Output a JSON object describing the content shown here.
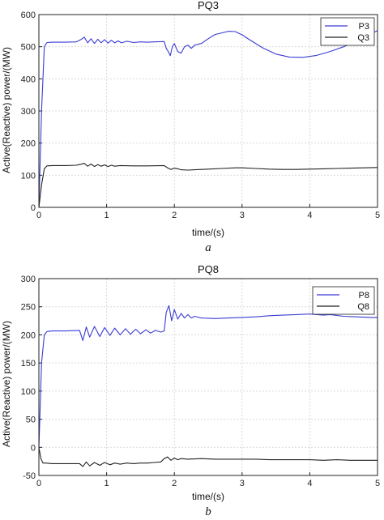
{
  "chart_data": [
    {
      "type": "line",
      "title": "PQ3",
      "xlabel": "time/(s)",
      "ylabel": "Active(Reactive) power/(MW)",
      "caption": "a",
      "xlim": [
        0,
        5
      ],
      "ylim": [
        0,
        600
      ],
      "xticks": [
        "0",
        "1",
        "2",
        "3",
        "4",
        "5"
      ],
      "yticks": [
        "0",
        "100",
        "200",
        "300",
        "400",
        "500",
        "600"
      ],
      "grid": true,
      "legend_position": "top-right",
      "series": [
        {
          "name": "P3",
          "color": "#3b3bd6",
          "x": [
            0,
            0.04,
            0.08,
            0.12,
            0.2,
            0.4,
            0.55,
            0.62,
            0.67,
            0.72,
            0.77,
            0.82,
            0.87,
            0.92,
            0.97,
            1.02,
            1.07,
            1.12,
            1.17,
            1.22,
            1.3,
            1.4,
            1.5,
            1.6,
            1.7,
            1.85,
            1.88,
            1.91,
            1.94,
            1.97,
            2.0,
            2.05,
            2.1,
            2.15,
            2.2,
            2.25,
            2.3,
            2.4,
            2.5,
            2.6,
            2.8,
            2.9,
            3.0,
            3.1,
            3.3,
            3.5,
            3.7,
            3.9,
            4.1,
            4.3,
            4.5,
            4.7,
            4.8,
            4.9,
            5.0
          ],
          "y": [
            0,
            300,
            500,
            513,
            514,
            514,
            515,
            522,
            530,
            512,
            525,
            510,
            523,
            512,
            522,
            511,
            520,
            512,
            518,
            512,
            517,
            513,
            515,
            514,
            515,
            516,
            495,
            485,
            472,
            500,
            510,
            485,
            480,
            500,
            505,
            495,
            505,
            510,
            525,
            538,
            548,
            547,
            537,
            523,
            497,
            477,
            468,
            467,
            473,
            485,
            500,
            518,
            528,
            540,
            550
          ]
        },
        {
          "name": "Q3",
          "color": "#222222",
          "x": [
            0,
            0.04,
            0.08,
            0.12,
            0.2,
            0.4,
            0.55,
            0.62,
            0.67,
            0.72,
            0.77,
            0.82,
            0.87,
            0.92,
            0.97,
            1.02,
            1.07,
            1.12,
            1.2,
            1.4,
            1.6,
            1.85,
            1.9,
            1.95,
            2.0,
            2.05,
            2.1,
            2.2,
            2.3,
            2.5,
            2.7,
            2.9,
            3.0,
            3.2,
            3.4,
            3.6,
            3.8,
            4.0,
            4.2,
            4.4,
            4.6,
            4.8,
            5.0
          ],
          "y": [
            0,
            70,
            120,
            129,
            130,
            130,
            131,
            134,
            137,
            128,
            135,
            127,
            133,
            128,
            132,
            127,
            131,
            128,
            130,
            129,
            129,
            130,
            123,
            118,
            122,
            120,
            117,
            116,
            117,
            119,
            121,
            123,
            123,
            121,
            119,
            118,
            118,
            119,
            120,
            121,
            122,
            123,
            124
          ]
        }
      ]
    },
    {
      "type": "line",
      "title": "PQ8",
      "xlabel": "time/(s)",
      "ylabel": "Active(Reactive) power/(MW)",
      "caption": "b",
      "xlim": [
        0,
        5
      ],
      "ylim": [
        -50,
        300
      ],
      "xticks": [
        "0",
        "1",
        "2",
        "3",
        "4",
        "5"
      ],
      "yticks": [
        "-50",
        "0",
        "50",
        "100",
        "150",
        "200",
        "250",
        "300"
      ],
      "grid": true,
      "legend_position": "top-right",
      "series": [
        {
          "name": "P8",
          "color": "#3b3bd6",
          "x": [
            0,
            0.04,
            0.08,
            0.12,
            0.2,
            0.4,
            0.6,
            0.65,
            0.7,
            0.75,
            0.82,
            0.9,
            0.97,
            1.05,
            1.12,
            1.2,
            1.28,
            1.35,
            1.43,
            1.5,
            1.58,
            1.65,
            1.72,
            1.8,
            1.85,
            1.88,
            1.92,
            1.96,
            2.0,
            2.05,
            2.1,
            2.15,
            2.2,
            2.25,
            2.3,
            2.4,
            2.6,
            2.8,
            3.0,
            3.2,
            3.4,
            3.6,
            3.8,
            4.0,
            4.2,
            4.3,
            4.5,
            4.7,
            4.9,
            5.0
          ],
          "y": [
            0,
            150,
            200,
            206,
            207,
            207,
            208,
            190,
            214,
            196,
            215,
            197,
            213,
            199,
            212,
            200,
            211,
            201,
            210,
            202,
            209,
            203,
            208,
            205,
            207,
            240,
            252,
            225,
            245,
            228,
            238,
            230,
            236,
            230,
            233,
            230,
            229,
            230,
            231,
            232,
            234,
            235,
            236,
            237,
            235,
            236,
            233,
            232,
            231,
            231
          ]
        },
        {
          "name": "Q8",
          "color": "#222222",
          "x": [
            0,
            0.03,
            0.06,
            0.1,
            0.2,
            0.4,
            0.6,
            0.65,
            0.7,
            0.75,
            0.82,
            0.9,
            0.97,
            1.05,
            1.12,
            1.2,
            1.3,
            1.4,
            1.5,
            1.6,
            1.7,
            1.8,
            1.85,
            1.9,
            1.95,
            2.0,
            2.05,
            2.1,
            2.2,
            2.4,
            2.6,
            2.8,
            3.0,
            3.2,
            3.4,
            3.6,
            3.8,
            4.0,
            4.2,
            4.4,
            4.6,
            4.8,
            5.0
          ],
          "y": [
            0,
            -20,
            -28,
            -28,
            -29,
            -29,
            -29,
            -34,
            -26,
            -33,
            -27,
            -32,
            -27,
            -31,
            -28,
            -30,
            -28,
            -29,
            -28,
            -28,
            -27,
            -26,
            -20,
            -17,
            -23,
            -19,
            -22,
            -20,
            -21,
            -20,
            -21,
            -21,
            -21,
            -21,
            -22,
            -22,
            -22,
            -22,
            -23,
            -22,
            -23,
            -23,
            -23
          ]
        }
      ]
    }
  ]
}
